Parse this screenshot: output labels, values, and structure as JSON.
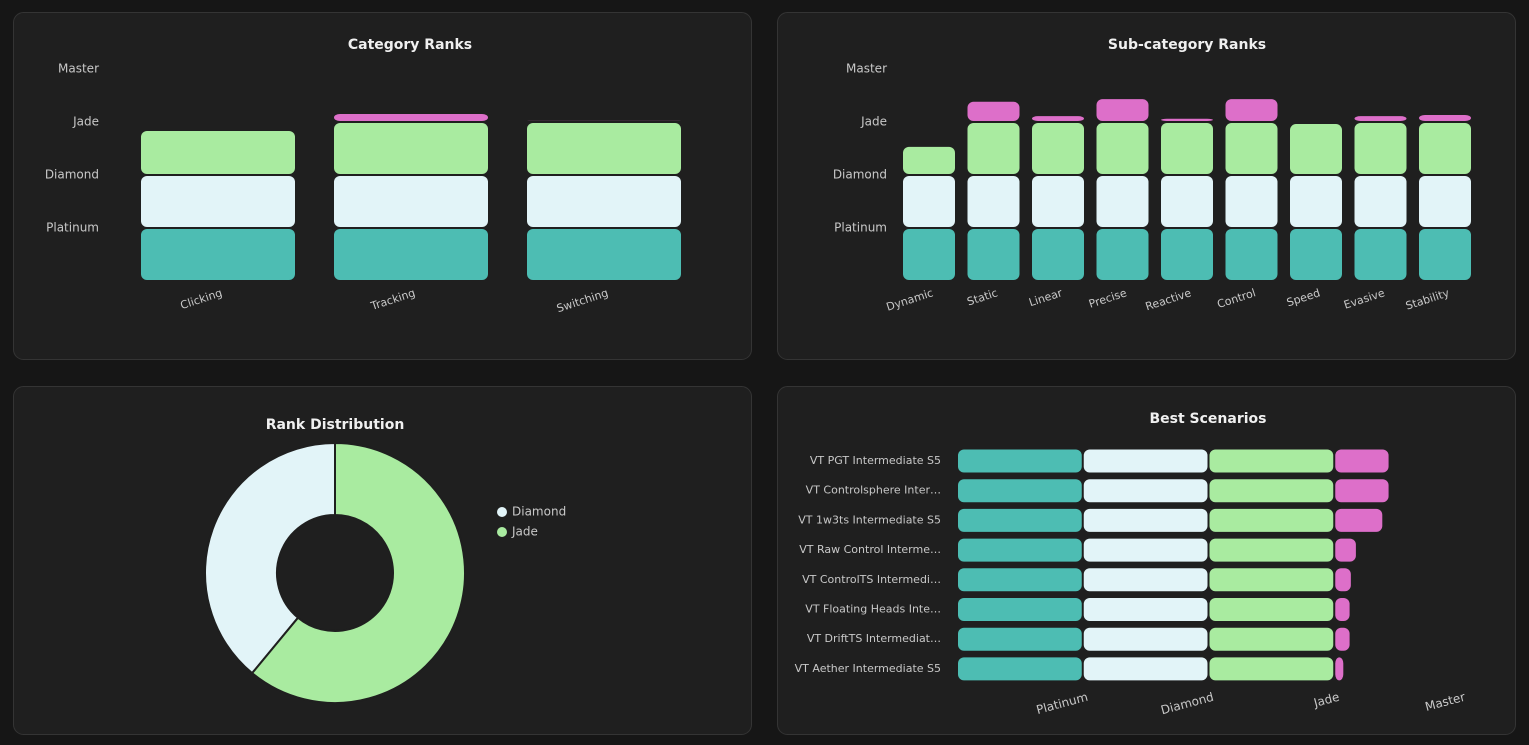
{
  "chart_data": [
    {
      "type": "bar",
      "stacked": true,
      "title": "Category Ranks",
      "categories": [
        "Clicking",
        "Tracking",
        "Switching"
      ],
      "series": [
        {
          "color": "#4dbdb3",
          "values": [
            1,
            1,
            1
          ]
        },
        {
          "color": "#e2f4f8",
          "values": [
            1,
            1,
            1
          ]
        },
        {
          "color": "#a9eba0",
          "values": [
            0.85,
            1,
            1
          ]
        },
        {
          "color": "#dd6fc9",
          "values": [
            0,
            0.17,
            0.04
          ]
        }
      ],
      "ylim": [
        0,
        4
      ],
      "yticks": [
        {
          "value": 1,
          "label": "Platinum"
        },
        {
          "value": 2,
          "label": "Diamond"
        },
        {
          "value": 3,
          "label": "Jade"
        },
        {
          "value": 4,
          "label": "Master"
        }
      ]
    },
    {
      "type": "bar",
      "stacked": true,
      "title": "Sub-category Ranks",
      "categories": [
        "Dynamic",
        "Static",
        "Linear",
        "Precise",
        "Reactive",
        "Control",
        "Speed",
        "Evasive",
        "Stability"
      ],
      "series": [
        {
          "color": "#4dbdb3",
          "values": [
            1,
            1,
            1,
            1,
            1,
            1,
            1,
            1,
            1
          ]
        },
        {
          "color": "#e2f4f8",
          "values": [
            1,
            1,
            1,
            1,
            1,
            1,
            1,
            1,
            1
          ]
        },
        {
          "color": "#a9eba0",
          "values": [
            0.55,
            1,
            1,
            1,
            1,
            1,
            0.98,
            1,
            1
          ]
        },
        {
          "color": "#dd6fc9",
          "values": [
            0,
            0.4,
            0.13,
            0.45,
            0.08,
            0.45,
            0,
            0.13,
            0.15
          ]
        }
      ],
      "ylim": [
        0,
        4
      ],
      "yticks": [
        {
          "value": 1,
          "label": "Platinum"
        },
        {
          "value": 2,
          "label": "Diamond"
        },
        {
          "value": 3,
          "label": "Jade"
        },
        {
          "value": 4,
          "label": "Master"
        }
      ]
    },
    {
      "type": "donut",
      "title": "Rank Distribution",
      "categories": [
        "Diamond",
        "Jade"
      ],
      "values": [
        39,
        61
      ],
      "colors": [
        "#e2f4f8",
        "#a9eba0"
      ],
      "legend": "right"
    },
    {
      "type": "bar",
      "stacked": true,
      "orientation": "horizontal",
      "title": "Best Scenarios",
      "categories": [
        "VT PGT Intermediate S5",
        "VT Controlsphere Inter…",
        "VT 1w3ts Intermediate S5",
        "VT Raw Control Interme…",
        "VT ControlTS Intermedi…",
        "VT Floating Heads Inte…",
        "VT DriftTS Intermediat…",
        "VT Aether Intermediate S5"
      ],
      "series": [
        {
          "color": "#4dbdb3",
          "values": [
            1,
            1,
            1,
            1,
            1,
            1,
            1,
            1
          ]
        },
        {
          "color": "#e2f4f8",
          "values": [
            1,
            1,
            1,
            1,
            1,
            1,
            1,
            1
          ]
        },
        {
          "color": "#a9eba0",
          "values": [
            1,
            1,
            1,
            1,
            1,
            1,
            1,
            1
          ]
        },
        {
          "color": "#dd6fc9",
          "values": [
            0.44,
            0.44,
            0.39,
            0.18,
            0.14,
            0.13,
            0.13,
            0.08
          ]
        }
      ],
      "xlim": [
        0,
        4
      ],
      "xticks": [
        {
          "value": 1,
          "label": "Platinum"
        },
        {
          "value": 2,
          "label": "Diamond"
        },
        {
          "value": 3,
          "label": "Jade"
        },
        {
          "value": 4,
          "label": "Master"
        }
      ]
    }
  ]
}
